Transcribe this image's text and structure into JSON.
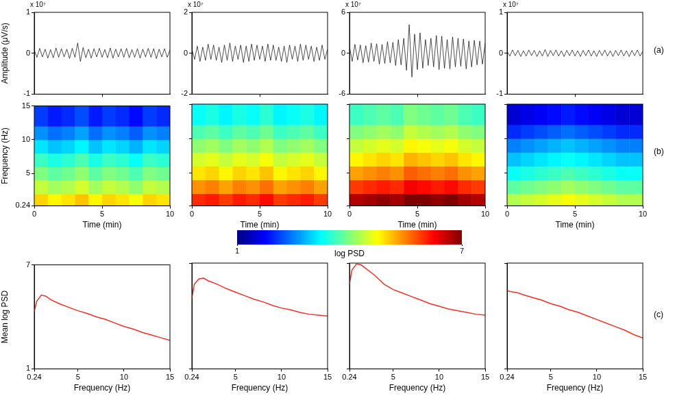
{
  "chart_data": [
    {
      "type": "line",
      "y_label": "Amplitude (μV/s)",
      "y_multiplier_label": "x 10⁷",
      "color": "#000000",
      "grid": false,
      "tick_labels": "y",
      "x": [
        0,
        0.2,
        0.4,
        0.6,
        0.8,
        1,
        1.2,
        1.4,
        1.6,
        1.8,
        2,
        2.2,
        2.4,
        2.6,
        2.8,
        3,
        3.2,
        3.4,
        3.6,
        3.8,
        4,
        4.2,
        4.4,
        4.6,
        4.8,
        5,
        5.2,
        5.4,
        5.6,
        5.8,
        6,
        6.2,
        6.4,
        6.6,
        6.8,
        7,
        7.2,
        7.4,
        7.6,
        7.8,
        8,
        8.2,
        8.4,
        8.6,
        8.8,
        9,
        9.2,
        9.4,
        9.6,
        9.8,
        10
      ],
      "values": [
        0.08,
        -0.1,
        0.12,
        -0.09,
        0.1,
        -0.12,
        0.09,
        -0.11,
        0.13,
        -0.1,
        0.11,
        -0.09,
        0.1,
        -0.13,
        0.12,
        -0.1,
        0.25,
        -0.2,
        0.14,
        -0.11,
        0.1,
        -0.12,
        0.11,
        -0.09,
        0.12,
        -0.1,
        0.09,
        -0.11,
        0.13,
        -0.12,
        0.1,
        -0.09,
        0.11,
        -0.1,
        0.12,
        -0.11,
        0.09,
        -0.1,
        0.11,
        -0.12,
        0.1,
        -0.09,
        0.12,
        -0.1,
        0.11,
        -0.13,
        0.1,
        -0.09,
        0.11,
        -0.1,
        0.08
      ],
      "xlim": [
        0,
        10
      ],
      "xticks": [
        5
      ],
      "ylim": [
        -1,
        1
      ],
      "yticks": [
        -1,
        0,
        1
      ]
    },
    {
      "type": "line",
      "y_multiplier_label": "x 10⁷",
      "color": "#000000",
      "grid": false,
      "tick_labels": "y",
      "x": [
        0,
        0.2,
        0.4,
        0.6,
        0.8,
        1,
        1.2,
        1.4,
        1.6,
        1.8,
        2,
        2.2,
        2.4,
        2.6,
        2.8,
        3,
        3.2,
        3.4,
        3.6,
        3.8,
        4,
        4.2,
        4.4,
        4.6,
        4.8,
        5,
        5.2,
        5.4,
        5.6,
        5.8,
        6,
        6.2,
        6.4,
        6.6,
        6.8,
        7,
        7.2,
        7.4,
        7.6,
        7.8,
        8,
        8.2,
        8.4,
        8.6,
        8.8,
        9,
        9.2,
        9.4,
        9.6,
        9.8,
        10
      ],
      "values": [
        0.2,
        -0.3,
        0.35,
        -0.4,
        0.3,
        -0.35,
        0.45,
        -0.3,
        0.4,
        -0.35,
        0.3,
        -0.45,
        0.4,
        -0.35,
        0.5,
        -0.4,
        0.35,
        -0.3,
        0.4,
        -0.45,
        0.35,
        -0.4,
        0.45,
        -0.35,
        0.4,
        -0.3,
        0.35,
        -0.4,
        0.45,
        -0.35,
        0.4,
        -0.35,
        0.3,
        -0.4,
        0.35,
        -0.45,
        0.4,
        -0.3,
        0.35,
        -0.4,
        0.45,
        -0.35,
        0.4,
        -0.3,
        0.35,
        -0.4,
        0.3,
        -0.35,
        0.4,
        -0.3,
        0.2
      ],
      "xlim": [
        0,
        10
      ],
      "xticks": [
        5
      ],
      "ylim": [
        -2,
        2
      ],
      "yticks": [
        -2,
        0,
        2
      ]
    },
    {
      "type": "line",
      "y_multiplier_label": "x 10⁷",
      "color": "#000000",
      "grid": false,
      "tick_labels": "y",
      "x": [
        0,
        0.2,
        0.4,
        0.6,
        0.8,
        1,
        1.2,
        1.4,
        1.6,
        1.8,
        2,
        2.2,
        2.4,
        2.6,
        2.8,
        3,
        3.2,
        3.4,
        3.6,
        3.8,
        4,
        4.2,
        4.4,
        4.6,
        4.8,
        5,
        5.2,
        5.4,
        5.6,
        5.8,
        6,
        6.2,
        6.4,
        6.6,
        6.8,
        7,
        7.2,
        7.4,
        7.6,
        7.8,
        8,
        8.2,
        8.4,
        8.6,
        8.8,
        9,
        9.2,
        9.4,
        9.6,
        9.8,
        10
      ],
      "values": [
        1.0,
        -1.2,
        1.3,
        -1.0,
        1.2,
        -1.4,
        1.1,
        -1.3,
        1.5,
        -1.2,
        1.4,
        -1.6,
        1.3,
        -1.5,
        1.7,
        -1.4,
        1.6,
        -1.8,
        2.0,
        -1.7,
        2.2,
        -2.5,
        4.2,
        -3.5,
        2.8,
        -2.4,
        3.0,
        -2.2,
        2.0,
        -1.8,
        2.2,
        -2.0,
        2.6,
        -2.4,
        2.5,
        -2.2,
        2.0,
        -2.3,
        2.4,
        -2.0,
        2.2,
        -1.9,
        2.1,
        -2.3,
        1.8,
        -2.0,
        1.9,
        -1.7,
        1.8,
        -1.6,
        1.5
      ],
      "xlim": [
        0,
        10
      ],
      "xticks": [
        5
      ],
      "ylim": [
        -6,
        6
      ],
      "yticks": [
        -6,
        0,
        6
      ]
    },
    {
      "type": "line",
      "y_multiplier_label": "x 10⁷",
      "color": "#000000",
      "grid": false,
      "tick_labels": "y",
      "x": [
        0,
        0.2,
        0.4,
        0.6,
        0.8,
        1,
        1.2,
        1.4,
        1.6,
        1.8,
        2,
        2.2,
        2.4,
        2.6,
        2.8,
        3,
        3.2,
        3.4,
        3.6,
        3.8,
        4,
        4.2,
        4.4,
        4.6,
        4.8,
        5,
        5.2,
        5.4,
        5.6,
        5.8,
        6,
        6.2,
        6.4,
        6.6,
        6.8,
        7,
        7.2,
        7.4,
        7.6,
        7.8,
        8,
        8.2,
        8.4,
        8.6,
        8.8,
        9,
        9.2,
        9.4,
        9.6,
        9.8,
        10
      ],
      "values": [
        0.05,
        -0.07,
        0.08,
        -0.06,
        0.07,
        -0.08,
        0.06,
        -0.07,
        0.08,
        -0.06,
        0.07,
        -0.08,
        0.06,
        -0.07,
        0.09,
        -0.08,
        0.07,
        -0.06,
        0.08,
        -0.07,
        0.06,
        -0.08,
        0.07,
        -0.06,
        0.08,
        -0.07,
        0.06,
        -0.08,
        0.07,
        -0.06,
        0.08,
        -0.07,
        0.06,
        -0.08,
        0.07,
        -0.06,
        0.08,
        -0.07,
        0.06,
        -0.08,
        0.07,
        -0.06,
        0.08,
        -0.07,
        0.06,
        -0.08,
        0.07,
        -0.06,
        0.08,
        -0.07,
        0.05
      ],
      "xlim": [
        0,
        10
      ],
      "xticks": [
        5
      ],
      "ylim": [
        -1,
        1
      ],
      "yticks": [
        -1,
        0,
        1
      ]
    },
    {
      "type": "heatmap",
      "x_label": "Time (min)",
      "y_label": "Frequency (Hz)",
      "tick_labels": true,
      "time_bins": [
        0,
        1,
        2,
        3,
        4,
        5,
        6,
        7,
        8,
        9,
        10
      ],
      "freq_bins": [
        0.24,
        2,
        4,
        6,
        8,
        10,
        12,
        15
      ],
      "cells": [
        [
          5.0,
          4.8,
          4.9,
          5.1,
          4.8,
          5.0,
          4.9,
          4.7,
          5.0,
          4.9
        ],
        [
          4.4,
          4.2,
          4.3,
          4.5,
          4.2,
          4.4,
          4.3,
          4.1,
          4.4,
          4.3
        ],
        [
          4.0,
          3.8,
          3.9,
          4.1,
          3.8,
          4.0,
          3.9,
          3.7,
          4.0,
          3.9
        ],
        [
          3.6,
          3.4,
          3.5,
          3.7,
          3.4,
          3.6,
          3.5,
          3.3,
          3.6,
          3.5
        ],
        [
          3.1,
          2.9,
          3.0,
          3.2,
          2.9,
          3.1,
          3.0,
          2.8,
          3.1,
          3.0
        ],
        [
          2.6,
          2.4,
          2.5,
          2.7,
          2.4,
          2.6,
          2.5,
          2.3,
          2.6,
          2.5
        ],
        [
          2.1,
          1.9,
          2.0,
          2.2,
          1.9,
          2.1,
          2.0,
          1.8,
          2.1,
          2.0
        ]
      ],
      "xlim": [
        0,
        10
      ],
      "xticks": [
        0,
        5,
        10
      ],
      "ylim": [
        0.24,
        15
      ],
      "yticks": [
        0.24,
        5,
        10,
        15
      ]
    },
    {
      "type": "heatmap",
      "x_label": "Time (min)",
      "tick_labels": "x",
      "time_bins": [
        0,
        1,
        2,
        3,
        4,
        5,
        6,
        7,
        8,
        9,
        10
      ],
      "freq_bins": [
        0.24,
        2,
        4,
        6,
        8,
        10,
        12,
        15
      ],
      "cells": [
        [
          6.0,
          6.1,
          5.9,
          6.1,
          6.0,
          6.2,
          5.9,
          6.0,
          6.1,
          5.9
        ],
        [
          5.4,
          5.5,
          5.3,
          5.5,
          5.4,
          5.6,
          5.3,
          5.4,
          5.5,
          5.3
        ],
        [
          4.9,
          5.0,
          4.8,
          5.0,
          4.9,
          5.1,
          4.8,
          4.9,
          5.0,
          4.8
        ],
        [
          4.5,
          4.6,
          4.4,
          4.6,
          4.5,
          4.7,
          4.4,
          4.5,
          4.6,
          4.4
        ],
        [
          4.1,
          4.2,
          4.0,
          4.2,
          4.1,
          4.3,
          4.0,
          4.1,
          4.2,
          4.0
        ],
        [
          3.7,
          3.8,
          3.6,
          3.8,
          3.7,
          3.9,
          3.6,
          3.7,
          3.8,
          3.6
        ],
        [
          3.3,
          3.4,
          3.2,
          3.4,
          3.3,
          3.5,
          3.2,
          3.3,
          3.4,
          3.2
        ]
      ],
      "xlim": [
        0,
        10
      ],
      "xticks": [
        0,
        5,
        10
      ],
      "ylim": [
        0.24,
        15
      ],
      "yticks": [
        0.24,
        5,
        10,
        15
      ]
    },
    {
      "type": "heatmap",
      "x_label": "Time (min)",
      "tick_labels": "x",
      "time_bins": [
        0,
        1,
        2,
        3,
        4,
        5,
        6,
        7,
        8,
        9,
        10
      ],
      "freq_bins": [
        0.24,
        2,
        4,
        6,
        8,
        10,
        12,
        15
      ],
      "cells": [
        [
          6.7,
          6.8,
          6.9,
          6.8,
          7.0,
          7.0,
          6.9,
          7.0,
          6.8,
          6.7
        ],
        [
          5.9,
          6.0,
          6.1,
          6.0,
          6.3,
          6.2,
          6.1,
          6.2,
          6.0,
          5.9
        ],
        [
          5.3,
          5.4,
          5.5,
          5.4,
          5.7,
          5.6,
          5.5,
          5.6,
          5.4,
          5.3
        ],
        [
          4.8,
          4.9,
          5.0,
          4.9,
          5.2,
          5.1,
          5.0,
          5.1,
          4.9,
          4.8
        ],
        [
          4.4,
          4.5,
          4.6,
          4.5,
          4.8,
          4.7,
          4.6,
          4.7,
          4.5,
          4.4
        ],
        [
          4.0,
          4.1,
          4.2,
          4.1,
          4.4,
          4.3,
          4.2,
          4.3,
          4.1,
          4.0
        ],
        [
          3.6,
          3.7,
          3.8,
          3.7,
          4.0,
          3.9,
          3.8,
          3.9,
          3.7,
          3.6
        ]
      ],
      "xlim": [
        0,
        10
      ],
      "xticks": [
        0,
        5,
        10
      ],
      "ylim": [
        0.24,
        15
      ],
      "yticks": [
        0.24,
        5,
        10,
        15
      ]
    },
    {
      "type": "heatmap",
      "x_label": "Time (min)",
      "tick_labels": "x",
      "time_bins": [
        0,
        1,
        2,
        3,
        4,
        5,
        6,
        7,
        8,
        9,
        10
      ],
      "freq_bins": [
        0.24,
        2,
        4,
        6,
        8,
        10,
        12,
        15
      ],
      "cells": [
        [
          4.3,
          4.4,
          4.5,
          4.6,
          4.7,
          4.6,
          4.5,
          4.4,
          4.3,
          4.3
        ],
        [
          3.8,
          3.9,
          4.0,
          4.1,
          4.2,
          4.1,
          4.0,
          3.9,
          3.8,
          3.8
        ],
        [
          3.3,
          3.4,
          3.5,
          3.6,
          3.7,
          3.6,
          3.5,
          3.4,
          3.3,
          3.3
        ],
        [
          2.9,
          3.0,
          3.1,
          3.2,
          3.3,
          3.2,
          3.1,
          3.0,
          2.9,
          2.9
        ],
        [
          2.5,
          2.6,
          2.7,
          2.8,
          2.9,
          2.8,
          2.7,
          2.6,
          2.5,
          2.5
        ],
        [
          2.0,
          2.1,
          2.2,
          2.3,
          2.4,
          2.3,
          2.2,
          2.1,
          2.0,
          2.0
        ],
        [
          1.5,
          1.6,
          1.7,
          1.8,
          1.9,
          1.8,
          1.7,
          1.6,
          1.5,
          1.5
        ]
      ],
      "xlim": [
        0,
        10
      ],
      "xticks": [
        0,
        5,
        10
      ],
      "ylim": [
        0.24,
        15
      ],
      "yticks": [
        0.24,
        5,
        10,
        15
      ]
    },
    {
      "type": "line",
      "x_label": "Frequency (Hz)",
      "y_label": "Mean log PSD",
      "color": "#e8322a",
      "grid": false,
      "tick_labels": true,
      "x": [
        0.24,
        0.5,
        1,
        1.5,
        2,
        3,
        4,
        5,
        6,
        7,
        8,
        9,
        10,
        11,
        12,
        13,
        14,
        15
      ],
      "values": [
        4.3,
        4.9,
        5.25,
        5.2,
        5.0,
        4.75,
        4.55,
        4.35,
        4.2,
        4.0,
        3.85,
        3.65,
        3.45,
        3.3,
        3.1,
        2.95,
        2.8,
        2.65
      ],
      "xlim": [
        0.24,
        15
      ],
      "xticks": [
        0.24,
        5,
        10,
        15
      ],
      "ylim": [
        1,
        7
      ],
      "yticks": [
        1,
        7
      ]
    },
    {
      "type": "line",
      "x_label": "Frequency (Hz)",
      "color": "#e8322a",
      "grid": false,
      "tick_labels": "x",
      "x": [
        0.24,
        0.5,
        1,
        1.5,
        2,
        3,
        4,
        5,
        6,
        7,
        8,
        9,
        10,
        11,
        12,
        13,
        14,
        15
      ],
      "values": [
        5.0,
        5.8,
        6.1,
        6.15,
        6.0,
        5.8,
        5.55,
        5.35,
        5.15,
        4.95,
        4.8,
        4.6,
        4.45,
        4.35,
        4.2,
        4.1,
        4.05,
        4.0
      ],
      "xlim": [
        0.24,
        15
      ],
      "xticks": [
        0.24,
        5,
        10,
        15
      ],
      "ylim": [
        1,
        7
      ],
      "yticks": [
        1,
        7
      ]
    },
    {
      "type": "line",
      "x_label": "Frequency (Hz)",
      "color": "#e8322a",
      "grid": false,
      "tick_labels": "x",
      "x": [
        0.24,
        0.5,
        1,
        1.5,
        2,
        3,
        4,
        5,
        6,
        7,
        8,
        9,
        10,
        11,
        12,
        13,
        14,
        15
      ],
      "values": [
        5.8,
        6.6,
        6.95,
        6.9,
        6.7,
        6.3,
        5.8,
        5.5,
        5.3,
        5.1,
        4.9,
        4.7,
        4.55,
        4.4,
        4.3,
        4.2,
        4.1,
        4.05
      ],
      "xlim": [
        0.24,
        15
      ],
      "xticks": [
        0.24,
        5,
        10,
        15
      ],
      "ylim": [
        1,
        7
      ],
      "yticks": [
        1,
        7
      ]
    },
    {
      "type": "line",
      "x_label": "Frequency (Hz)",
      "color": "#e8322a",
      "grid": false,
      "tick_labels": "x",
      "x": [
        0.24,
        0.5,
        1,
        1.5,
        2,
        3,
        4,
        5,
        6,
        7,
        8,
        9,
        10,
        11,
        12,
        13,
        14,
        15
      ],
      "values": [
        5.45,
        5.4,
        5.35,
        5.3,
        5.2,
        5.05,
        4.9,
        4.7,
        4.55,
        4.35,
        4.2,
        4.0,
        3.8,
        3.6,
        3.4,
        3.2,
        2.95,
        2.75
      ],
      "xlim": [
        0.24,
        15
      ],
      "xticks": [
        0.24,
        5,
        10,
        15
      ],
      "ylim": [
        1,
        7
      ],
      "yticks": [
        1,
        7
      ]
    }
  ],
  "colorbar": {
    "label": "log PSD",
    "range": [
      1,
      7
    ],
    "ticks": [
      1,
      7
    ]
  },
  "row_labels": [
    "(a)",
    "(b)",
    "(c)"
  ]
}
